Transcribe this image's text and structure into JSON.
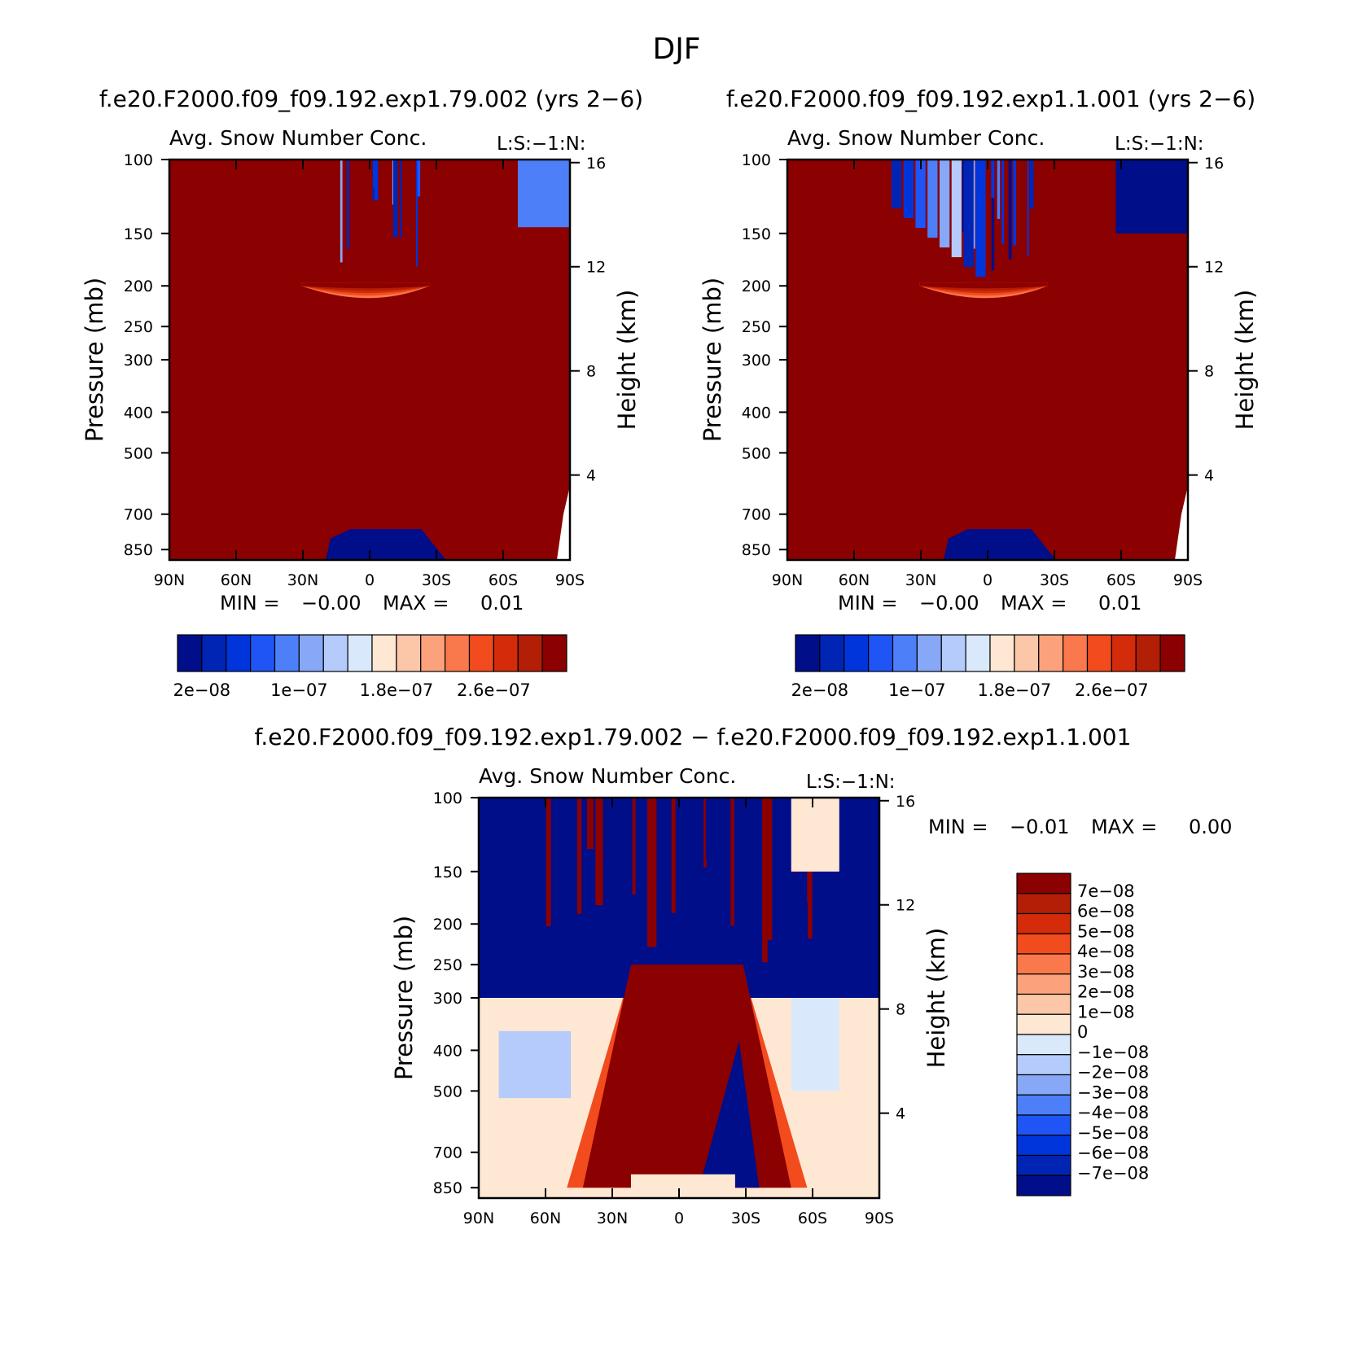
{
  "page": {
    "title": "DJF"
  },
  "chart_data": [
    {
      "type": "heatmap",
      "case_title": "f.e20.F2000.f09_f09.192.exp1.79.002 (yrs 2−6)",
      "title": "Avg. Snow Number Conc.",
      "units_label": "L:S:−1:N:",
      "ylabel": "Pressure (mb)",
      "ylabel_right": "Height (km)",
      "x_ticks": [
        "90N",
        "60N",
        "30N",
        "0",
        "30S",
        "60S",
        "90S"
      ],
      "y_ticks": [
        "100",
        "150",
        "200",
        "250",
        "300",
        "400",
        "500",
        "700",
        "850"
      ],
      "y_ticks_right": [
        "16",
        "12",
        "8",
        "4"
      ],
      "stats": {
        "min_label": "MIN =",
        "min": "−0.00",
        "max_label": "MAX =",
        "max": "0.01"
      },
      "colorbar": {
        "orientation": "horizontal",
        "tick_labels": [
          "2e−08",
          "1e−07",
          "1.8e−07",
          "2.6e−07"
        ],
        "colors": [
          "#000e8a",
          "#0025b5",
          "#0035dc",
          "#1f55f5",
          "#4d7ff9",
          "#86a8f7",
          "#b4cbfb",
          "#d9e8fb",
          "#fee8d3",
          "#fcc6a8",
          "#fba27c",
          "#f9784c",
          "#f24b1e",
          "#d42b0a",
          "#b21e06",
          "#8b0000"
        ]
      },
      "yrange_mb": [
        100,
        900
      ],
      "xrange": [
        "90N",
        "90S"
      ]
    },
    {
      "type": "heatmap",
      "case_title": "f.e20.F2000.f09_f09.192.exp1.1.001 (yrs 2−6)",
      "title": "Avg. Snow Number Conc.",
      "units_label": "L:S:−1:N:",
      "ylabel": "Pressure (mb)",
      "ylabel_right": "Height (km)",
      "x_ticks": [
        "90N",
        "60N",
        "30N",
        "0",
        "30S",
        "60S",
        "90S"
      ],
      "y_ticks": [
        "100",
        "150",
        "200",
        "250",
        "300",
        "400",
        "500",
        "700",
        "850"
      ],
      "y_ticks_right": [
        "16",
        "12",
        "8",
        "4"
      ],
      "stats": {
        "min_label": "MIN =",
        "min": "−0.00",
        "max_label": "MAX =",
        "max": "0.01"
      },
      "colorbar": {
        "orientation": "horizontal",
        "tick_labels": [
          "2e−08",
          "1e−07",
          "1.8e−07",
          "2.6e−07"
        ],
        "colors": [
          "#000e8a",
          "#0025b5",
          "#0035dc",
          "#1f55f5",
          "#4d7ff9",
          "#86a8f7",
          "#b4cbfb",
          "#d9e8fb",
          "#fee8d3",
          "#fcc6a8",
          "#fba27c",
          "#f9784c",
          "#f24b1e",
          "#d42b0a",
          "#b21e06",
          "#8b0000"
        ]
      },
      "yrange_mb": [
        100,
        900
      ],
      "xrange": [
        "90N",
        "90S"
      ]
    },
    {
      "type": "heatmap",
      "case_title": "f.e20.F2000.f09_f09.192.exp1.79.002 − f.e20.F2000.f09_f09.192.exp1.1.001",
      "title": "Avg. Snow Number Conc.",
      "units_label": "L:S:−1:N:",
      "ylabel": "Pressure (mb)",
      "ylabel_right": "Height (km)",
      "x_ticks": [
        "90N",
        "60N",
        "30N",
        "0",
        "30S",
        "60S",
        "90S"
      ],
      "y_ticks": [
        "100",
        "150",
        "200",
        "250",
        "300",
        "400",
        "500",
        "700",
        "850"
      ],
      "y_ticks_right": [
        "16",
        "12",
        "8",
        "4"
      ],
      "stats": {
        "min_label": "MIN =",
        "min": "−0.01",
        "max_label": "MAX =",
        "max": "0.00"
      },
      "colorbar": {
        "orientation": "vertical",
        "tick_labels": [
          "7e−08",
          "6e−08",
          "5e−08",
          "4e−08",
          "3e−08",
          "2e−08",
          "1e−08",
          "0",
          "−1e−08",
          "−2e−08",
          "−3e−08",
          "−4e−08",
          "−5e−08",
          "−6e−08",
          "−7e−08"
        ],
        "colors": [
          "#8b0000",
          "#b21e06",
          "#d42b0a",
          "#f24b1e",
          "#f9784c",
          "#fba27c",
          "#fcc6a8",
          "#fee8d3",
          "#d9e8fb",
          "#b4cbfb",
          "#86a8f7",
          "#4d7ff9",
          "#1f55f5",
          "#0035dc",
          "#0025b5",
          "#000e8a"
        ]
      },
      "yrange_mb": [
        100,
        900
      ],
      "xrange": [
        "90N",
        "90S"
      ]
    }
  ]
}
